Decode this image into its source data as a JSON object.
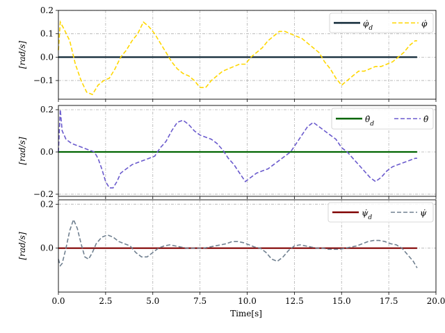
{
  "chart_data": [
    {
      "type": "line",
      "ylabel": "[rad/s]",
      "xlim": [
        0,
        20
      ],
      "ylim": [
        -0.18,
        0.2
      ],
      "yticks": [
        -0.1,
        0.0,
        0.1,
        0.2
      ],
      "ytick_labels": [
        "−0.1",
        "0.0",
        "0.1",
        "0.2"
      ],
      "grid": true,
      "legend_position": "top-right",
      "series": [
        {
          "name": "φ̇_d",
          "style": "solid",
          "color": "#0b2433",
          "x": [
            0,
            19
          ],
          "y": [
            0,
            0
          ]
        },
        {
          "name": "φ̇",
          "style": "dashed",
          "color": "#ffd700",
          "x": [
            0.0,
            0.1,
            0.3,
            0.6,
            0.9,
            1.2,
            1.5,
            1.8,
            2.1,
            2.4,
            2.7,
            3.0,
            3.3,
            3.6,
            3.9,
            4.2,
            4.5,
            4.8,
            5.1,
            5.4,
            5.7,
            6.0,
            6.3,
            6.6,
            6.9,
            7.2,
            7.5,
            7.8,
            8.1,
            8.4,
            8.7,
            9.0,
            9.3,
            9.6,
            9.9,
            10.2,
            10.5,
            10.8,
            11.1,
            11.4,
            11.7,
            12.0,
            12.3,
            12.6,
            12.9,
            13.2,
            13.5,
            13.8,
            14.1,
            14.4,
            14.7,
            15.0,
            15.3,
            15.6,
            15.9,
            16.2,
            16.5,
            16.8,
            17.1,
            17.4,
            17.7,
            18.0,
            18.3,
            18.6,
            18.9,
            19.0
          ],
          "y": [
            0.03,
            0.15,
            0.12,
            0.07,
            -0.03,
            -0.1,
            -0.15,
            -0.16,
            -0.12,
            -0.1,
            -0.09,
            -0.05,
            0.0,
            0.03,
            0.07,
            0.1,
            0.15,
            0.13,
            0.1,
            0.06,
            0.02,
            -0.02,
            -0.05,
            -0.07,
            -0.08,
            -0.1,
            -0.13,
            -0.13,
            -0.1,
            -0.08,
            -0.06,
            -0.05,
            -0.04,
            -0.03,
            -0.03,
            0.0,
            0.02,
            0.04,
            0.07,
            0.09,
            0.11,
            0.11,
            0.1,
            0.09,
            0.08,
            0.06,
            0.04,
            0.02,
            -0.02,
            -0.05,
            -0.09,
            -0.12,
            -0.1,
            -0.08,
            -0.06,
            -0.06,
            -0.05,
            -0.04,
            -0.04,
            -0.03,
            -0.02,
            0.0,
            0.02,
            0.05,
            0.07,
            0.07
          ]
        }
      ]
    },
    {
      "type": "line",
      "ylabel": "[rad/s]",
      "xlim": [
        0,
        20
      ],
      "ylim": [
        -0.21,
        0.22
      ],
      "yticks": [
        -0.2,
        0.0,
        0.2
      ],
      "ytick_labels": [
        "−0.2",
        "0.0",
        "0.2"
      ],
      "grid": true,
      "legend_position": "top-right",
      "series": [
        {
          "name": "θ̇_d",
          "style": "solid",
          "color": "#006400",
          "x": [
            0,
            19
          ],
          "y": [
            0,
            0
          ]
        },
        {
          "name": "θ̇",
          "style": "dashed",
          "color": "#6a5acd",
          "x": [
            0.0,
            0.1,
            0.2,
            0.4,
            0.7,
            1.0,
            1.3,
            1.6,
            1.9,
            2.1,
            2.3,
            2.5,
            2.7,
            2.9,
            3.1,
            3.3,
            3.6,
            3.9,
            4.2,
            4.5,
            4.8,
            5.1,
            5.4,
            5.7,
            6.0,
            6.3,
            6.6,
            6.9,
            7.2,
            7.5,
            7.8,
            8.1,
            8.4,
            8.7,
            9.0,
            9.3,
            9.6,
            9.9,
            10.2,
            10.5,
            10.8,
            11.1,
            11.4,
            11.7,
            12.0,
            12.3,
            12.6,
            12.9,
            13.2,
            13.5,
            13.8,
            14.1,
            14.4,
            14.7,
            15.0,
            15.3,
            15.6,
            15.9,
            16.2,
            16.5,
            16.8,
            17.1,
            17.4,
            17.7,
            18.0,
            18.3,
            18.6,
            18.9,
            19.0
          ],
          "y": [
            0.0,
            0.2,
            0.1,
            0.06,
            0.04,
            0.03,
            0.02,
            0.01,
            0.0,
            -0.03,
            -0.08,
            -0.14,
            -0.17,
            -0.17,
            -0.14,
            -0.1,
            -0.08,
            -0.06,
            -0.05,
            -0.04,
            -0.03,
            -0.02,
            0.02,
            0.05,
            0.1,
            0.14,
            0.15,
            0.13,
            0.1,
            0.08,
            0.07,
            0.06,
            0.04,
            0.01,
            -0.03,
            -0.06,
            -0.1,
            -0.14,
            -0.12,
            -0.1,
            -0.09,
            -0.08,
            -0.06,
            -0.04,
            -0.02,
            0.0,
            0.04,
            0.08,
            0.12,
            0.14,
            0.12,
            0.1,
            0.08,
            0.06,
            0.02,
            0.0,
            -0.03,
            -0.06,
            -0.09,
            -0.12,
            -0.14,
            -0.12,
            -0.09,
            -0.07,
            -0.06,
            -0.05,
            -0.04,
            -0.03,
            -0.03
          ]
        }
      ]
    },
    {
      "type": "line",
      "ylabel": "[rad/s]",
      "xlabel": "Time[s]",
      "xlim": [
        0,
        20
      ],
      "xticks": [
        0,
        2.5,
        5,
        7.5,
        10,
        12.5,
        15,
        17.5,
        20
      ],
      "xtick_labels": [
        "0.0",
        "2.5",
        "5.0",
        "7.5",
        "10.0",
        "12.5",
        "15.0",
        "17.5",
        "20.0"
      ],
      "ylim": [
        -0.2,
        0.22
      ],
      "yticks": [
        0.0,
        0.2
      ],
      "ytick_labels": [
        "0.0",
        "0.2"
      ],
      "grid": true,
      "legend_position": "top-right",
      "series": [
        {
          "name": "ψ̇_d",
          "style": "solid",
          "color": "#800000",
          "x": [
            0,
            19
          ],
          "y": [
            0,
            0
          ]
        },
        {
          "name": "ψ̇",
          "style": "dashed",
          "color": "#708090",
          "x": [
            0.0,
            0.1,
            0.2,
            0.4,
            0.6,
            0.8,
            1.0,
            1.2,
            1.4,
            1.6,
            1.8,
            2.0,
            2.3,
            2.6,
            2.9,
            3.2,
            3.5,
            3.8,
            4.1,
            4.4,
            4.7,
            5.0,
            5.3,
            5.6,
            5.9,
            6.2,
            6.5,
            6.8,
            7.1,
            7.4,
            7.7,
            8.0,
            8.3,
            8.6,
            8.9,
            9.2,
            9.5,
            9.8,
            10.1,
            10.4,
            10.7,
            11.0,
            11.3,
            11.6,
            11.9,
            12.2,
            12.5,
            12.8,
            13.1,
            13.4,
            13.7,
            14.0,
            14.3,
            14.6,
            14.9,
            15.2,
            15.5,
            15.8,
            16.1,
            16.4,
            16.7,
            17.0,
            17.3,
            17.6,
            17.9,
            18.2,
            18.5,
            18.8,
            19.0
          ],
          "y": [
            -0.05,
            -0.08,
            -0.07,
            0.0,
            0.08,
            0.13,
            0.09,
            0.02,
            -0.04,
            -0.05,
            -0.02,
            0.02,
            0.05,
            0.06,
            0.05,
            0.03,
            0.02,
            0.01,
            -0.02,
            -0.04,
            -0.04,
            -0.02,
            0.0,
            0.01,
            0.015,
            0.01,
            0.005,
            0.0,
            0.0,
            0.0,
            0.0,
            0.005,
            0.01,
            0.015,
            0.02,
            0.03,
            0.03,
            0.025,
            0.015,
            0.005,
            0.0,
            -0.02,
            -0.05,
            -0.06,
            -0.04,
            -0.01,
            0.01,
            0.015,
            0.01,
            0.005,
            0.0,
            0.0,
            -0.005,
            -0.005,
            -0.005,
            0.0,
            0.005,
            0.01,
            0.02,
            0.03,
            0.035,
            0.035,
            0.03,
            0.02,
            0.015,
            0.0,
            -0.03,
            -0.06,
            -0.09
          ]
        }
      ]
    }
  ]
}
